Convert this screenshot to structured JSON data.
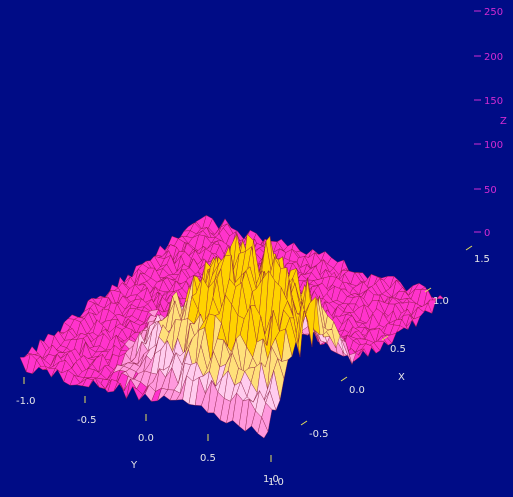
{
  "chart_data": {
    "type": "surface3d",
    "title": "",
    "axes": {
      "x": {
        "label": "X",
        "ticks": [
          "-0.5",
          "0.0",
          "0.5",
          "1.0",
          "1.5"
        ],
        "range": [
          -1.0,
          1.5
        ]
      },
      "y": {
        "label": "Y",
        "ticks": [
          "-1.0",
          "-0.5",
          "0.0",
          "0.5",
          "1.0"
        ],
        "range": [
          -1.0,
          1.0
        ]
      },
      "z": {
        "label": "Z",
        "ticks": [
          "0",
          "50",
          "100",
          "150",
          "200",
          "250"
        ],
        "range": [
          0,
          250
        ]
      }
    },
    "surface": {
      "description_of_shape": "noisy ridge peaking near x=-0.5..0, y=0.5..1.0 with max ~230",
      "peak_z": 230,
      "base_z": 10
    },
    "colors": {
      "background": "#000c86",
      "axis_text": "#e8e8e8",
      "z_axis_text": "#d22bd2",
      "low": "#ff33cc",
      "mid": "#ffccee",
      "high": "#ffd200",
      "edge": "#8a1a3a"
    },
    "grid": false
  }
}
